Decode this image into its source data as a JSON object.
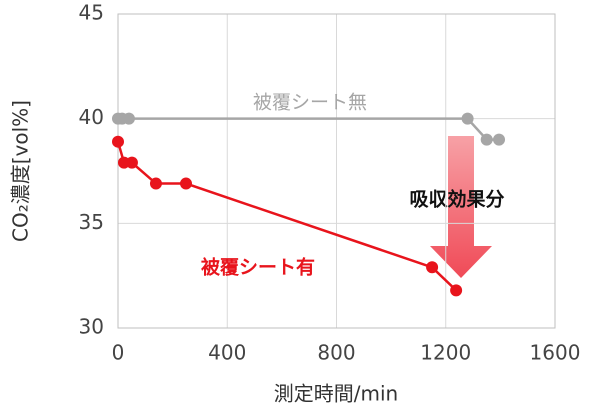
{
  "chart_data": {
    "type": "line",
    "x_label": "測定時間/min",
    "y_label": "CO₂濃度[vol%]",
    "annotation": "吸収効果分",
    "xlim": [
      0,
      1600
    ],
    "xticks": [
      0,
      400,
      800,
      1200,
      1600
    ],
    "ylim": [
      30,
      45
    ],
    "yticks": [
      30,
      35,
      40,
      45
    ],
    "grid": true,
    "series": [
      {
        "name": "被覆シート無",
        "color": "#a6a6a6",
        "x": [
          0,
          15,
          40,
          1280,
          1350,
          1395
        ],
        "values": [
          40,
          40,
          40,
          40,
          39,
          39
        ]
      },
      {
        "name": "被覆シート有",
        "color": "#e8141c",
        "x": [
          0,
          22,
          51,
          139,
          249,
          1150,
          1238
        ],
        "values": [
          38.9,
          37.9,
          37.9,
          36.9,
          36.9,
          32.9,
          31.8
        ]
      }
    ]
  }
}
